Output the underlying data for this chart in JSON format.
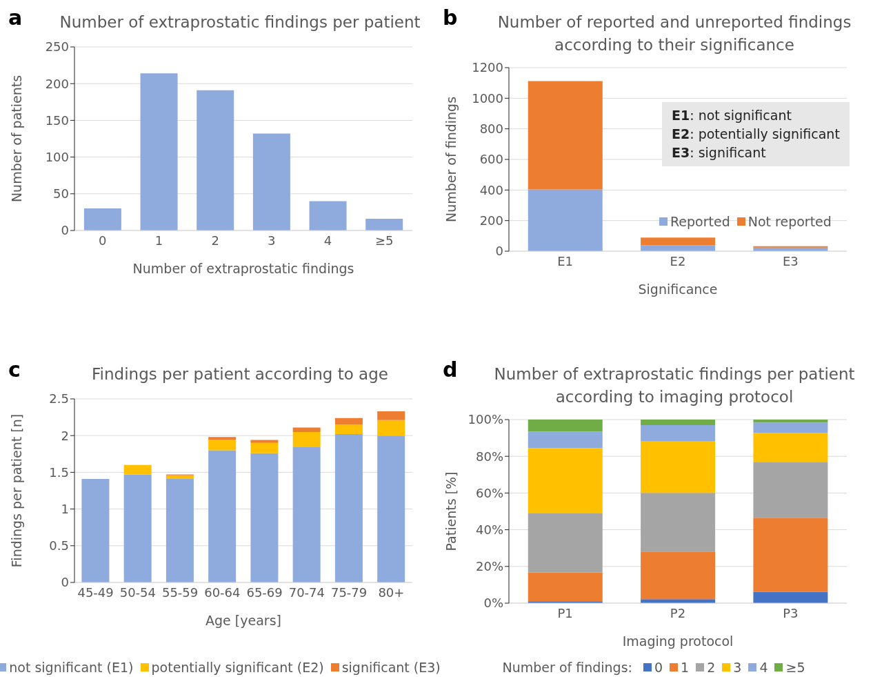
{
  "chart_data": [
    {
      "type": "bar",
      "title": "Number of extraprostatic findings per patient",
      "xlabel": "Number of extraprostatic findings",
      "ylabel": "Number of patients",
      "annotations": [
        "a"
      ],
      "categories": [
        "0",
        "1",
        "2",
        "3",
        "4",
        "≥5"
      ],
      "values": [
        30,
        214,
        191,
        132,
        40,
        16
      ],
      "color": "#8faadc",
      "ylim": [
        0,
        250
      ],
      "yticks": [
        0,
        50,
        100,
        150,
        200,
        250
      ],
      "grid": "y",
      "legend": false
    },
    {
      "type": "bar",
      "title": "Number of reported and unreported findings according to their significance",
      "xlabel": "Significance",
      "ylabel": "Number of findings",
      "annotations": [
        "b",
        "E1: not significant",
        "E2: potentially significant",
        "E3: significant"
      ],
      "categories": [
        "E1",
        "E2",
        "E3"
      ],
      "stacked": true,
      "series": [
        {
          "name": "Reported",
          "color": "#8faadc",
          "values": [
            404,
            39,
            24
          ]
        },
        {
          "name": "Not reported",
          "color": "#ed7d31",
          "values": [
            708,
            50,
            9
          ]
        }
      ],
      "ylim": [
        0,
        1200
      ],
      "yticks": [
        0,
        200,
        400,
        600,
        800,
        1000,
        1200
      ],
      "grid": "y",
      "legend": "right"
    },
    {
      "type": "bar",
      "title": "Findings per patient according to age",
      "xlabel": "Age [years]",
      "ylabel": "Findings per patient [n]",
      "annotations": [
        "c"
      ],
      "categories": [
        "45-49",
        "50-54",
        "55-59",
        "60-64",
        "65-69",
        "70-74",
        "75-79",
        "80+"
      ],
      "stacked": true,
      "series": [
        {
          "name": "not significant (E1)",
          "color": "#8faadc",
          "values": [
            1.41,
            1.47,
            1.41,
            1.8,
            1.76,
            1.85,
            2.02,
            2.0
          ]
        },
        {
          "name": "potentially significant (E2)",
          "color": "#ffc000",
          "values": [
            null,
            0.13,
            0.05,
            0.14,
            0.14,
            0.2,
            0.13,
            0.21
          ]
        },
        {
          "name": "significant (E3)",
          "color": "#ed7d31",
          "values": [
            null,
            null,
            0.01,
            0.04,
            0.04,
            0.06,
            0.09,
            0.12
          ]
        }
      ],
      "ylim": [
        0,
        2.5
      ],
      "yticks": [
        0,
        0.5,
        1,
        1.5,
        2,
        2.5
      ],
      "grid": "y",
      "legend": "bottom"
    },
    {
      "type": "bar",
      "title": "Number of extraprostatic findings per patient according to imaging protocol",
      "xlabel": "Imaging protocol",
      "ylabel": "Patients [%]",
      "legend_title": "Number of findings:",
      "annotations": [
        "d"
      ],
      "categories": [
        "P1",
        "P2",
        "P3"
      ],
      "stacked": true,
      "series": [
        {
          "name": "0",
          "color": "#4472c4",
          "values": [
            1.0,
            2.2,
            6.2
          ]
        },
        {
          "name": "1",
          "color": "#ed7d31",
          "values": [
            15.6,
            25.9,
            40.3
          ]
        },
        {
          "name": "2",
          "color": "#a5a5a5",
          "values": [
            32.6,
            32.0,
            30.2
          ]
        },
        {
          "name": "3",
          "color": "#ffc000",
          "values": [
            35.3,
            28.2,
            16.1
          ]
        },
        {
          "name": "4",
          "color": "#8faadc",
          "values": [
            9.0,
            8.7,
            5.6
          ]
        },
        {
          "name": "≥5",
          "color": "#70ad47",
          "values": [
            6.5,
            3.0,
            1.6
          ]
        }
      ],
      "ylim": [
        0,
        100
      ],
      "yticks": [
        {
          "value": 0,
          "label": "0%"
        },
        {
          "value": 20,
          "label": "20%"
        },
        {
          "value": 40,
          "label": "40%"
        },
        {
          "value": 60,
          "label": "60%"
        },
        {
          "value": 80,
          "label": "80%"
        },
        {
          "value": 100,
          "label": "100%"
        }
      ],
      "grid": "y",
      "legend": "bottom"
    }
  ]
}
